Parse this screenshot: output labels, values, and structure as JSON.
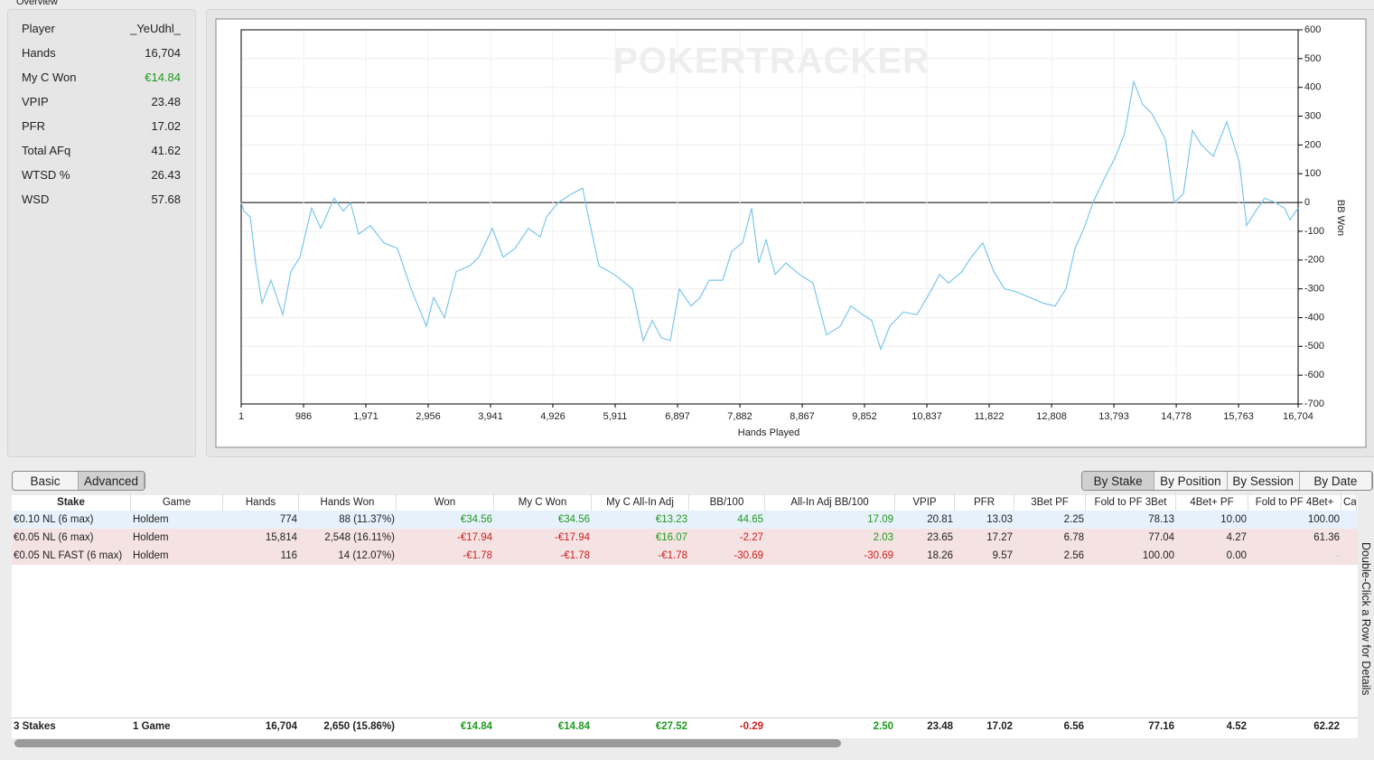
{
  "overview": {
    "title": "Overview",
    "stats": [
      [
        "Player",
        "_YeUdhl_"
      ],
      [
        "Hands",
        "16,704"
      ],
      [
        "My C Won",
        "€14.84"
      ],
      [
        "VPIP",
        "23.48"
      ],
      [
        "PFR",
        "17.02"
      ],
      [
        "Total AFq",
        "41.62"
      ],
      [
        "WTSD %",
        "26.43"
      ],
      [
        "WSD",
        "57.68"
      ]
    ]
  },
  "chart_data": {
    "type": "line",
    "watermark": "POKERTRACKER",
    "xlabel": "Hands Played",
    "ylabel": "BB Won",
    "color": "#7cc6ec",
    "grid": true,
    "x": [
      1,
      44,
      144,
      229,
      329,
      472,
      658,
      786,
      929,
      1114,
      1257,
      1471,
      1614,
      1728,
      1857,
      2043,
      2257,
      2471,
      2685,
      2928,
      3042,
      3213,
      3399,
      3613,
      3756,
      3970,
      4141,
      4327,
      4541,
      4727,
      4826,
      5012,
      5226,
      5398,
      5469,
      5654,
      5897,
      6183,
      6354,
      6497,
      6640,
      6782,
      6925,
      7110,
      7253,
      7396,
      7610,
      7753,
      7924,
      8067,
      8181,
      8296,
      8439,
      8610,
      8824,
      9038,
      9252,
      9466,
      9638,
      9823,
      9966,
      10109,
      10251,
      10465,
      10679,
      10894,
      11036,
      11179,
      11393,
      11536,
      11722,
      11893,
      12064,
      12250,
      12464,
      12678,
      12864,
      13035,
      13178,
      13320,
      13463,
      13634,
      13820,
      13963,
      14106,
      14249,
      14391,
      14605,
      14748,
      14891,
      15034,
      15177,
      15362,
      15576,
      15776,
      15890,
      16033,
      16176,
      16347,
      16490,
      16576,
      16704
    ],
    "values": [
      0,
      -30,
      -50,
      -210,
      -350,
      -270,
      -390,
      -240,
      -190,
      -20,
      -90,
      15,
      -30,
      0,
      -110,
      -80,
      -140,
      -160,
      -300,
      -430,
      -330,
      -400,
      -240,
      -220,
      -190,
      -90,
      -190,
      -160,
      -90,
      -120,
      -50,
      0,
      30,
      50,
      -30,
      -220,
      -250,
      -300,
      -480,
      -410,
      -470,
      -480,
      -300,
      -360,
      -330,
      -270,
      -270,
      -170,
      -140,
      -20,
      -210,
      -130,
      -250,
      -210,
      -250,
      -280,
      -460,
      -430,
      -360,
      -390,
      -410,
      -510,
      -430,
      -380,
      -390,
      -310,
      -250,
      -280,
      -240,
      -190,
      -140,
      -240,
      -300,
      -310,
      -330,
      -350,
      -360,
      -300,
      -160,
      -90,
      0,
      80,
      160,
      240,
      420,
      340,
      310,
      220,
      0,
      30,
      250,
      200,
      160,
      280,
      140,
      -80,
      -30,
      15,
      0,
      -20,
      -60,
      -20
    ],
    "xlim": [
      1,
      16704
    ],
    "ylim": [
      -700,
      600
    ],
    "xticks": [
      1,
      {
        "value": 986,
        "label": "986"
      },
      {
        "value": 1971,
        "label": "1,971"
      },
      {
        "value": 2956,
        "label": "2,956"
      },
      {
        "value": 3941,
        "label": "3,941"
      },
      {
        "value": 4926,
        "label": "4,926"
      },
      {
        "value": 5911,
        "label": "5,911"
      },
      {
        "value": 6897,
        "label": "6,897"
      },
      {
        "value": 7882,
        "label": "7,882"
      },
      {
        "value": 8867,
        "label": "8,867"
      },
      {
        "value": 9852,
        "label": "9,852"
      },
      {
        "value": 10837,
        "label": "10,837"
      },
      {
        "value": 11822,
        "label": "11,822"
      },
      {
        "value": 12808,
        "label": "12,808"
      },
      {
        "value": 13793,
        "label": "13,793"
      },
      {
        "value": 14778,
        "label": "14,778"
      },
      {
        "value": 15763,
        "label": "15,763"
      },
      {
        "value": 16704,
        "label": "16,704"
      }
    ],
    "yticks": [
      600,
      500,
      400,
      300,
      200,
      100,
      0,
      -100,
      -200,
      -300,
      -400,
      -500,
      -600,
      -700
    ]
  },
  "tabs": {
    "left": [
      "Basic",
      "Advanced"
    ],
    "left_selected": 1,
    "right": [
      "By Stake",
      "By Position",
      "By Session",
      "By Date"
    ],
    "right_selected": 0
  },
  "table": {
    "columns": [
      "Stake",
      "Game",
      "Hands",
      "Hands Won",
      "Won",
      "My C Won",
      "My C All-In Adj",
      "BB/100",
      "All-In Adj BB/100",
      "VPIP",
      "PFR",
      "3Bet PF",
      "Fold to PF 3Bet",
      "4Bet+ PF",
      "Fold to PF 4Bet+",
      "Ca"
    ],
    "rows": [
      [
        "€0.10 NL (6 max)",
        "Holdem",
        "774",
        "88 (11.37%)",
        "€34.56",
        "€34.56",
        "€13.23",
        "44.65",
        "17.09",
        "20.81",
        "13.03",
        "2.25",
        "78.13",
        "10.00",
        "100.00"
      ],
      [
        "€0.05 NL (6 max)",
        "Holdem",
        "15,814",
        "2,548 (16.11%)",
        "-€17.94",
        "-€17.94",
        "€16.07",
        "-2.27",
        "2.03",
        "23.65",
        "17.27",
        "6.78",
        "77.04",
        "4.27",
        "61.36"
      ],
      [
        "€0.05 NL FAST (6 max)",
        "Holdem",
        "116",
        "14 (12.07%)",
        "-€1.78",
        "-€1.78",
        "-€1.78",
        "-30.69",
        "-30.69",
        "18.26",
        "9.57",
        "2.56",
        "100.00",
        "0.00",
        "-"
      ]
    ],
    "totals": [
      "3 Stakes",
      "1 Game",
      "16,704",
      "2,650 (15.86%)",
      "€14.84",
      "€14.84",
      "€27.52",
      "-0.29",
      "2.50",
      "23.48",
      "17.02",
      "6.56",
      "77.16",
      "4.52",
      "62.22"
    ]
  },
  "hint": "Double-Click a Row for Details"
}
